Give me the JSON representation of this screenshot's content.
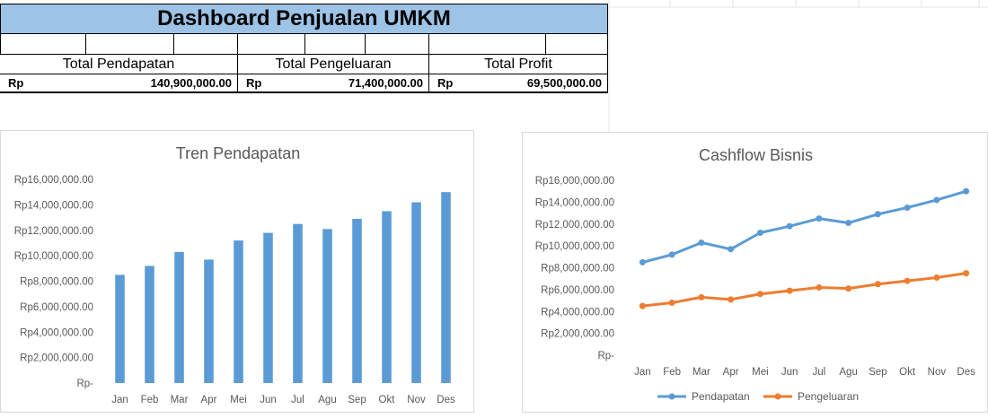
{
  "dashboard": {
    "title": "Dashboard Penjualan UMKM",
    "summary": [
      {
        "label": "Total Pendapatan",
        "currency": "Rp",
        "value": "140,900,000.00"
      },
      {
        "label": "Total Pengeluaran",
        "currency": "Rp",
        "value": "71,400,000.00"
      },
      {
        "label": "Total Profit",
        "currency": "Rp",
        "value": "69,500,000.00"
      }
    ]
  },
  "chart_data": [
    {
      "type": "bar",
      "title": "Tren Pendapatan",
      "categories": [
        "Jan",
        "Feb",
        "Mar",
        "Apr",
        "Mei",
        "Jun",
        "Jul",
        "Agu",
        "Sep",
        "Okt",
        "Nov",
        "Des"
      ],
      "values": [
        8500000,
        9200000,
        10300000,
        9700000,
        11200000,
        11800000,
        12500000,
        12100000,
        12900000,
        13500000,
        14200000,
        15000000
      ],
      "ylim": [
        0,
        16000000
      ],
      "ytick_labels": [
        "Rp-",
        "Rp2,000,000.00",
        "Rp4,000,000.00",
        "Rp6,000,000.00",
        "Rp8,000,000.00",
        "Rp10,000,000.00",
        "Rp12,000,000.00",
        "Rp14,000,000.00",
        "Rp16,000,000.00"
      ],
      "color": "#5b9bd5",
      "grid": false
    },
    {
      "type": "line",
      "title": "Cashflow Bisnis",
      "categories": [
        "Jan",
        "Feb",
        "Mar",
        "Apr",
        "Mei",
        "Jun",
        "Jul",
        "Agu",
        "Sep",
        "Okt",
        "Nov",
        "Des"
      ],
      "series": [
        {
          "name": "Pendapatan",
          "color": "#5b9bd5",
          "values": [
            8500000,
            9200000,
            10300000,
            9700000,
            11200000,
            11800000,
            12500000,
            12100000,
            12900000,
            13500000,
            14200000,
            15000000
          ]
        },
        {
          "name": "Pengeluaran",
          "color": "#ed7d31",
          "values": [
            4500000,
            4800000,
            5300000,
            5100000,
            5600000,
            5900000,
            6200000,
            6100000,
            6500000,
            6800000,
            7100000,
            7500000
          ]
        }
      ],
      "ylim": [
        0,
        16000000
      ],
      "ytick_labels": [
        "Rp-",
        "Rp2,000,000.00",
        "Rp4,000,000.00",
        "Rp6,000,000.00",
        "Rp8,000,000.00",
        "Rp10,000,000.00",
        "Rp12,000,000.00",
        "Rp14,000,000.00",
        "Rp16,000,000.00"
      ],
      "legend": "bottom",
      "grid": false
    }
  ]
}
